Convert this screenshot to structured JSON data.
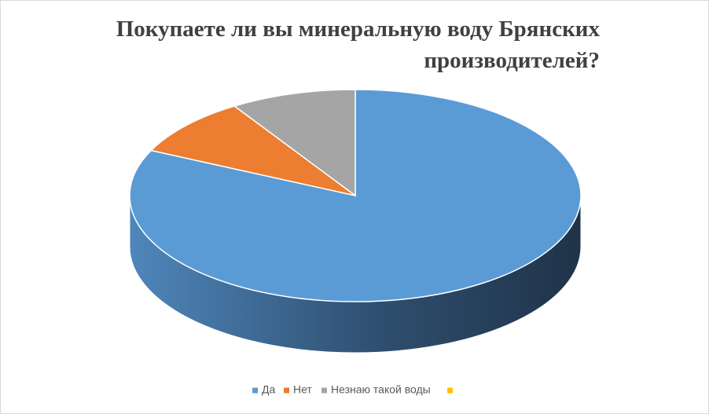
{
  "chart_data": {
    "type": "pie3d",
    "title": "Покупаете ли вы минеральную воду Брянских производителей?",
    "categories": [
      "Да",
      "Нет",
      "Незнаю такой воды",
      null
    ],
    "values": [
      82,
      9,
      9,
      0
    ],
    "colors": [
      "#5b9bd5",
      "#ed7d31",
      "#a5a5a5",
      "#ffc000"
    ],
    "legend": "bottom"
  }
}
